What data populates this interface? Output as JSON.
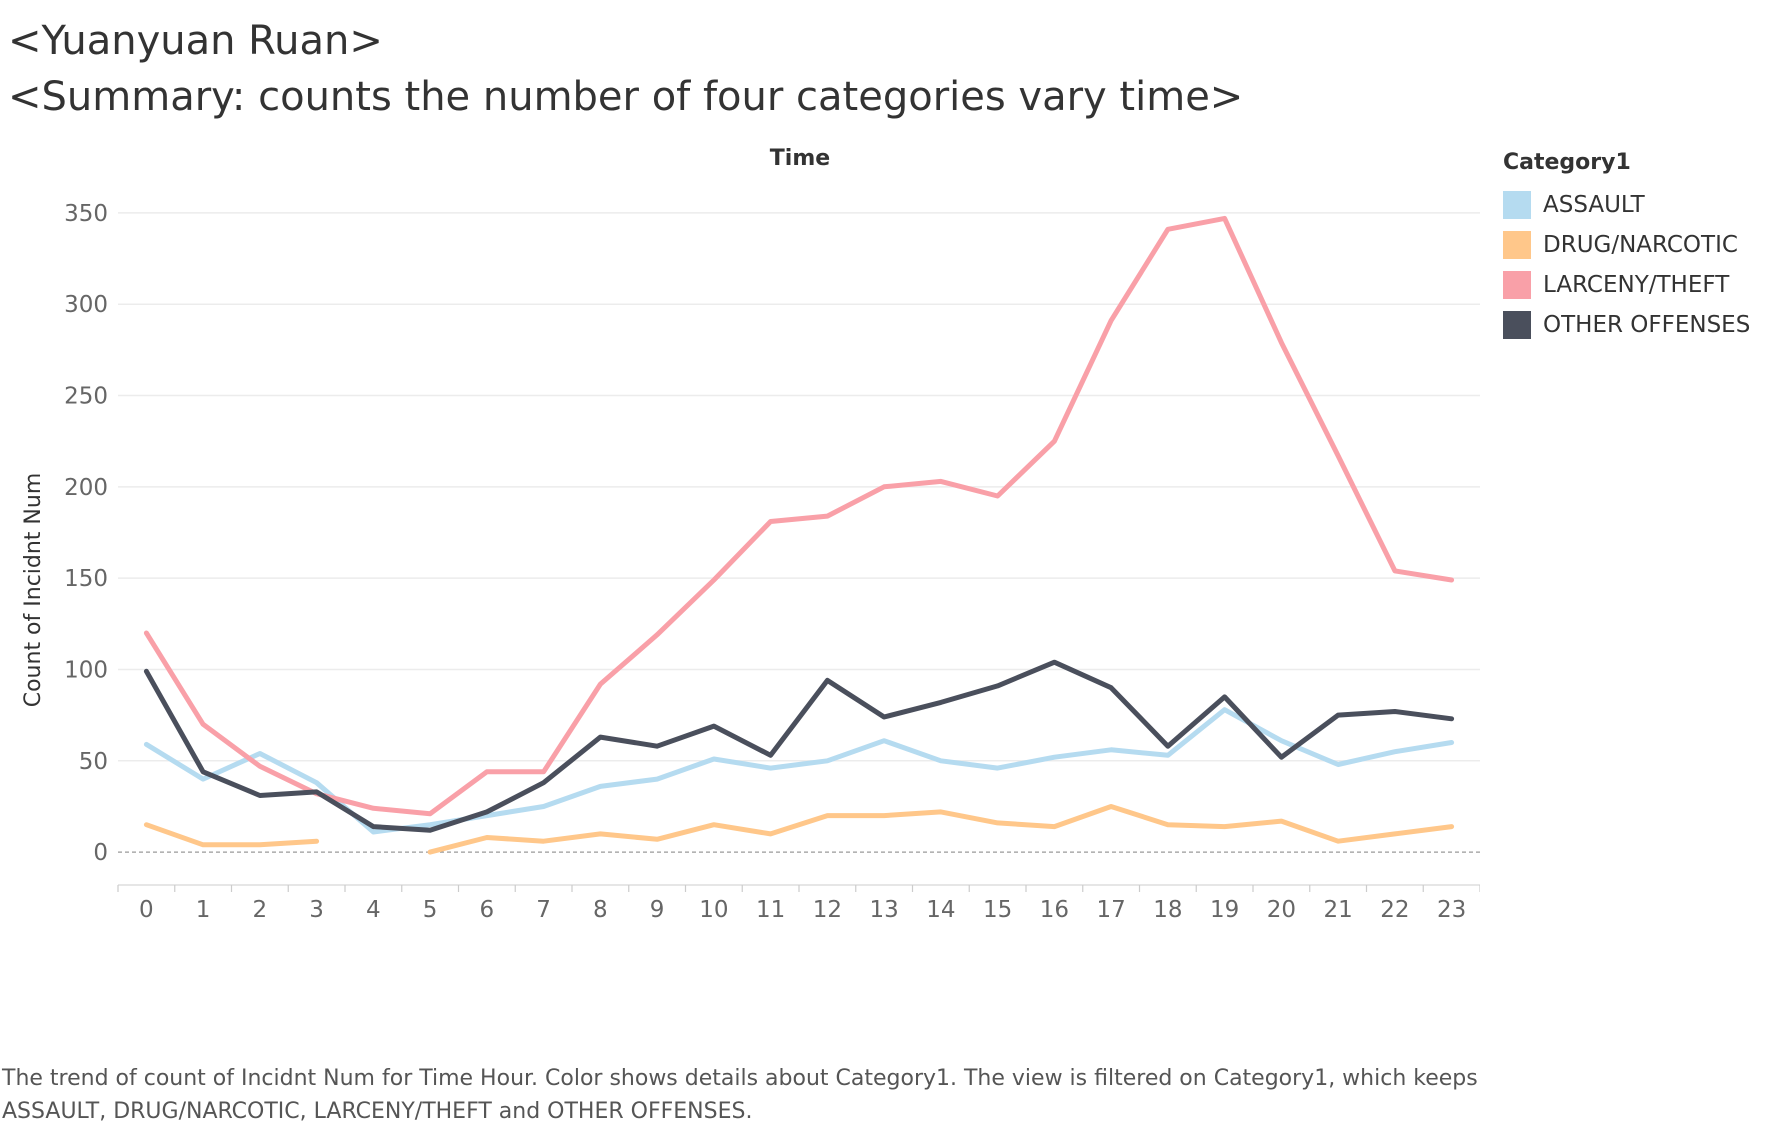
{
  "title": "<Yuanyuan Ruan>",
  "subtitle": "<Summary: counts the number of four categories vary time>",
  "caption": "The trend of count of Incidnt Num for Time Hour.  Color shows details about Category1. The view is filtered on Category1, which keeps ASSAULT, DRUG/NARCOTIC, LARCENY/THEFT and OTHER OFFENSES.",
  "chart_data": {
    "type": "line",
    "title": "",
    "xlabel": "Time",
    "ylabel": "Count of Incidnt Num",
    "x": [
      0,
      1,
      2,
      3,
      4,
      5,
      6,
      7,
      8,
      9,
      10,
      11,
      12,
      13,
      14,
      15,
      16,
      17,
      18,
      19,
      20,
      21,
      22,
      23
    ],
    "x_tick_labels": [
      "0",
      "1",
      "2",
      "3",
      "4",
      "5",
      "6",
      "7",
      "8",
      "9",
      "10",
      "11",
      "12",
      "13",
      "14",
      "15",
      "16",
      "17",
      "18",
      "19",
      "20",
      "21",
      "22",
      "23"
    ],
    "y_ticks": [
      0,
      50,
      100,
      150,
      200,
      250,
      300,
      350
    ],
    "y_tick_labels": [
      "0",
      "50",
      "100",
      "150",
      "200",
      "250",
      "300",
      "350"
    ],
    "ylim": [
      -18,
      368
    ],
    "grid": "horizontal",
    "zero_line": "dashed",
    "legend": {
      "title": "Category1",
      "placement": "right"
    },
    "series": [
      {
        "name": "ASSAULT",
        "color": "#b5dbf0",
        "values": [
          59,
          40,
          54,
          38,
          11,
          15,
          20,
          25,
          36,
          40,
          51,
          46,
          50,
          61,
          50,
          46,
          52,
          56,
          53,
          78,
          61,
          48,
          55,
          60
        ]
      },
      {
        "name": "DRUG/NARCOTIC",
        "color": "#ffc78a",
        "values": [
          15,
          4,
          4,
          6,
          null,
          0,
          8,
          6,
          10,
          7,
          15,
          10,
          20,
          20,
          22,
          16,
          14,
          25,
          15,
          14,
          17,
          6,
          10,
          14
        ]
      },
      {
        "name": "LARCENY/THEFT",
        "color": "#f9a0a8",
        "values": [
          120,
          70,
          47,
          32,
          24,
          21,
          44,
          44,
          92,
          119,
          149,
          181,
          184,
          200,
          203,
          195,
          225,
          291,
          341,
          347,
          279,
          217,
          154,
          149
        ]
      },
      {
        "name": "OTHER OFFENSES",
        "color": "#4a4f5c",
        "values": [
          99,
          44,
          31,
          33,
          14,
          12,
          22,
          38,
          63,
          58,
          69,
          53,
          94,
          74,
          82,
          91,
          104,
          90,
          58,
          85,
          52,
          75,
          77,
          73
        ]
      }
    ]
  }
}
